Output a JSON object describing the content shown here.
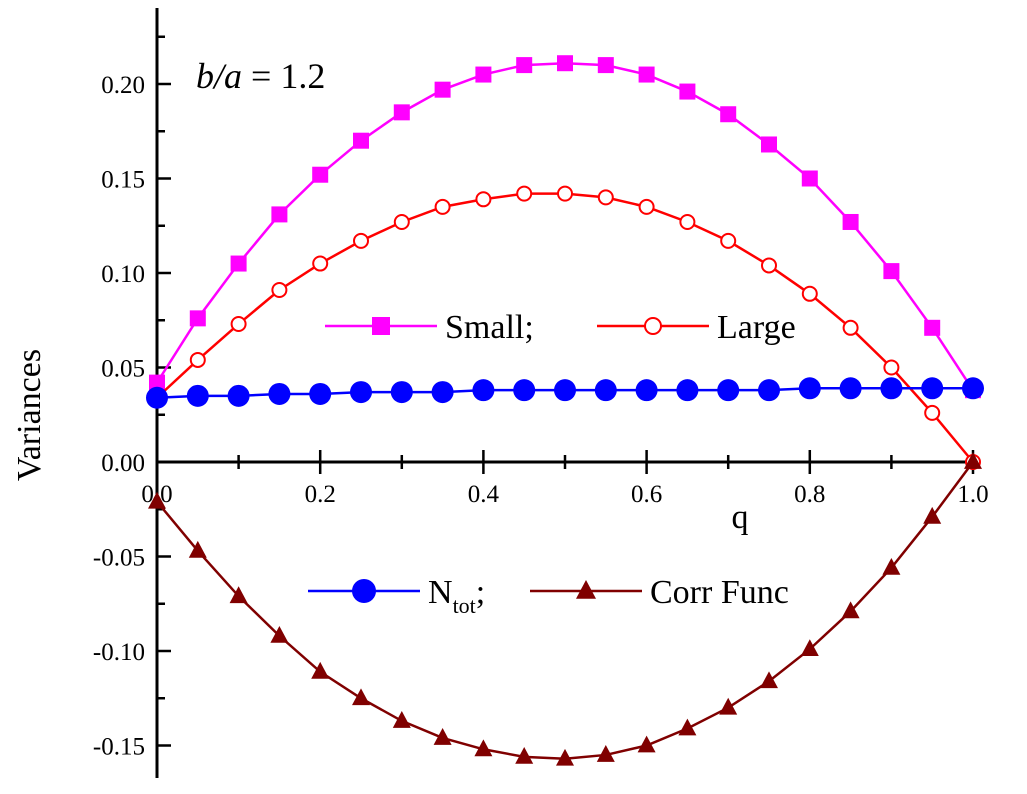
{
  "chart_data": {
    "type": "line",
    "title": "",
    "annotation": {
      "italic_part": "b/a",
      "rest": " = 1.2"
    },
    "xlabel": "q",
    "ylabel": "Variances",
    "xlim": [
      0,
      1.0
    ],
    "ylim": [
      -0.17,
      0.24
    ],
    "x_ticks": [
      0.0,
      0.2,
      0.4,
      0.6,
      0.8,
      1.0
    ],
    "x_tick_labels": [
      "0.0",
      "0.2",
      "0.4",
      "0.6",
      "0.8",
      "1.0"
    ],
    "y_ticks": [
      -0.15,
      -0.1,
      -0.05,
      0.0,
      0.05,
      0.1,
      0.15,
      0.2
    ],
    "y_tick_labels": [
      "-0.15",
      "-0.10",
      "-0.05",
      "0.00",
      "0.05",
      "0.10",
      "0.15",
      "0.20"
    ],
    "grid": false,
    "x": [
      0.0,
      0.05,
      0.1,
      0.15,
      0.2,
      0.25,
      0.3,
      0.35,
      0.4,
      0.45,
      0.5,
      0.55,
      0.6,
      0.65,
      0.7,
      0.75,
      0.8,
      0.85,
      0.9,
      0.95,
      1.0
    ],
    "series": [
      {
        "name": "Small;",
        "color": "#ff00ff",
        "marker": "square-filled",
        "values": [
          0.042,
          0.076,
          0.105,
          0.131,
          0.152,
          0.17,
          0.185,
          0.197,
          0.205,
          0.21,
          0.211,
          0.21,
          0.205,
          0.196,
          0.184,
          0.168,
          0.15,
          0.127,
          0.101,
          0.071,
          0.038
        ]
      },
      {
        "name": "Large",
        "color": "#ff0000",
        "marker": "circle-open",
        "values": [
          0.034,
          0.054,
          0.073,
          0.091,
          0.105,
          0.117,
          0.127,
          0.135,
          0.139,
          0.142,
          0.142,
          0.14,
          0.135,
          0.127,
          0.117,
          0.104,
          0.089,
          0.071,
          0.05,
          0.026,
          0.0
        ]
      },
      {
        "name_main": "N",
        "name_sub": "tot",
        "name_suffix": ";",
        "color": "#0000ff",
        "marker": "circle-filled",
        "values": [
          0.034,
          0.035,
          0.035,
          0.036,
          0.036,
          0.037,
          0.037,
          0.037,
          0.038,
          0.038,
          0.038,
          0.038,
          0.038,
          0.038,
          0.038,
          0.038,
          0.039,
          0.039,
          0.039,
          0.039,
          0.039
        ]
      },
      {
        "name": "Corr Func",
        "color": "#800000",
        "marker": "triangle-filled",
        "values": [
          -0.021,
          -0.047,
          -0.071,
          -0.092,
          -0.111,
          -0.125,
          -0.137,
          -0.146,
          -0.152,
          -0.156,
          -0.157,
          -0.155,
          -0.15,
          -0.141,
          -0.13,
          -0.116,
          -0.099,
          -0.079,
          -0.056,
          -0.029,
          0.0
        ]
      }
    ],
    "legend_upper": "center-right",
    "legend_lower": "lower-center"
  }
}
